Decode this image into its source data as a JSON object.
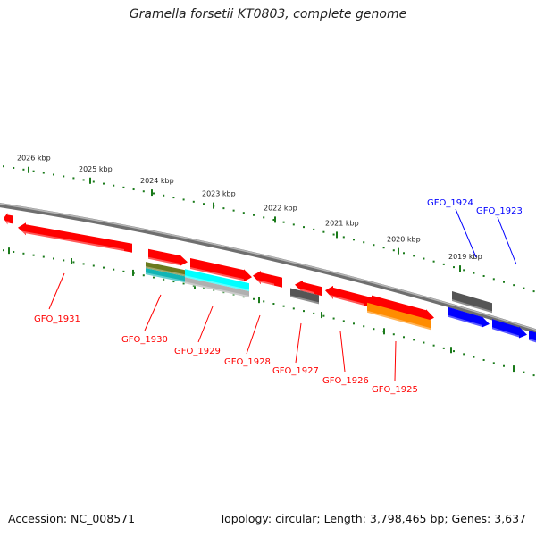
{
  "title": "Gramella forsetii KT0803, complete genome",
  "footer": {
    "accession": "Accession: NC_008571",
    "summary": "Topology: circular; Length: 3,798,465 bp; Genes: 3,637"
  },
  "colors": {
    "forward_gene": "#ff0000",
    "reverse_gene": "#0000ff",
    "feature_gray": "#555555",
    "feature_olive": "#6b7a1e",
    "feature_teal": "#12b5b5",
    "feature_cyan": "#00ffff",
    "feature_silver": "#b0b0b0",
    "feature_orange": "#ff8c00",
    "ruler": "#1a7a1a",
    "backbone": "#888888"
  },
  "ruler_labels": [
    {
      "text": "2026 kbp"
    },
    {
      "text": "2025 kbp"
    },
    {
      "text": "2024 kbp"
    },
    {
      "text": "2023 kbp"
    },
    {
      "text": "2022 kbp"
    },
    {
      "text": "2021 kbp"
    },
    {
      "text": "2020 kbp"
    },
    {
      "text": "2019 kbp"
    }
  ],
  "gene_labels": [
    {
      "text": "GFO_1931",
      "strand": "forward"
    },
    {
      "text": "GFO_1930",
      "strand": "forward"
    },
    {
      "text": "GFO_1929",
      "strand": "forward"
    },
    {
      "text": "GFO_1928",
      "strand": "forward"
    },
    {
      "text": "GFO_1927",
      "strand": "forward"
    },
    {
      "text": "GFO_1926",
      "strand": "forward"
    },
    {
      "text": "GFO_1925",
      "strand": "forward"
    },
    {
      "text": "GFO_1924",
      "strand": "reverse"
    },
    {
      "text": "GFO_1923",
      "strand": "reverse"
    }
  ]
}
